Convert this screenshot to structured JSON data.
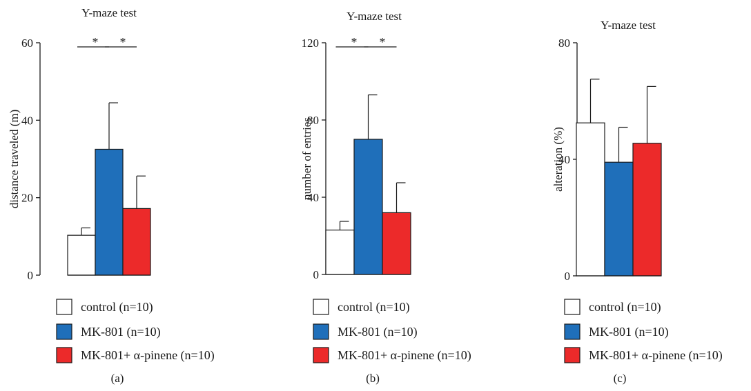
{
  "legend": [
    {
      "label": "control (n=10)",
      "color": "#ffffff"
    },
    {
      "label": "MK-801 (n=10)",
      "color": "#1f6fba"
    },
    {
      "label": "MK-801+ α-pinene (n=10)",
      "color": "#ec2a2a"
    }
  ],
  "chart_data": [
    {
      "type": "bar",
      "panel_label": "(a)",
      "title": "Y-maze test",
      "ylabel": "distance traveled (m)",
      "xlabel": "",
      "ylim": [
        0,
        60
      ],
      "yticks": [
        0,
        20,
        40,
        60
      ],
      "categories": [
        "control (n=10)",
        "MK-801 (n=10)",
        "MK-801+ α-pinene (n=10)"
      ],
      "values": [
        10.3,
        32.5,
        17.2
      ],
      "errors": [
        1.9,
        12.0,
        8.4
      ],
      "colors": [
        "#ffffff",
        "#1f6fba",
        "#ec2a2a"
      ],
      "significance": [
        {
          "from": 0,
          "to": 1,
          "label": "*"
        },
        {
          "from": 1,
          "to": 2,
          "label": "*"
        }
      ]
    },
    {
      "type": "bar",
      "panel_label": "(b)",
      "title": "Y-maze test",
      "ylabel": "number of entries",
      "xlabel": "",
      "ylim": [
        0,
        120
      ],
      "yticks": [
        0,
        40,
        80,
        120
      ],
      "categories": [
        "control (n=10)",
        "MK-801 (n=10)",
        "MK-801+ α-pinene (n=10)"
      ],
      "values": [
        23,
        70,
        32
      ],
      "errors": [
        4.5,
        23,
        15.5
      ],
      "colors": [
        "#ffffff",
        "#1f6fba",
        "#ec2a2a"
      ],
      "significance": [
        {
          "from": 0,
          "to": 1,
          "label": "*"
        },
        {
          "from": 1,
          "to": 2,
          "label": "*"
        }
      ]
    },
    {
      "type": "bar",
      "panel_label": "(c)",
      "title": "Y-maze test",
      "ylabel": "alteration (%)",
      "xlabel": "",
      "ylim": [
        0,
        80
      ],
      "yticks": [
        0,
        40,
        80
      ],
      "categories": [
        "control (n=10)",
        "MK-801 (n=10)",
        "MK-801+ α-pinene (n=10)"
      ],
      "values": [
        52.5,
        39,
        45.5
      ],
      "errors": [
        15,
        12,
        19.5
      ],
      "colors": [
        "#ffffff",
        "#1f6fba",
        "#ec2a2a"
      ],
      "significance": []
    }
  ]
}
